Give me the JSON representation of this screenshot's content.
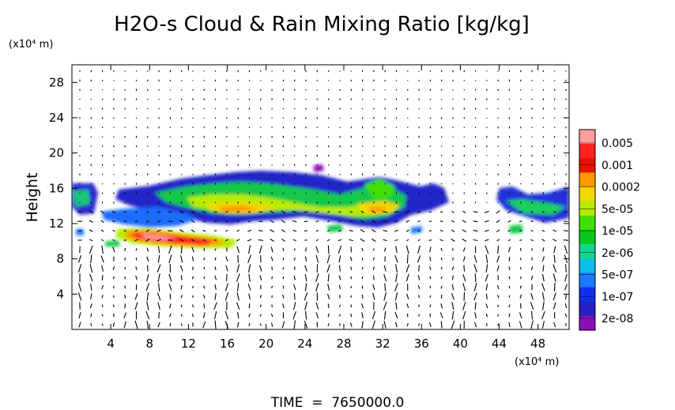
{
  "chart_data": {
    "type": "heatmap",
    "title": "H2O-s Cloud & Rain Mixing Ratio [kg/kg]",
    "xunit": "(x10⁴ m)",
    "yunit": "(x10⁴ m)",
    "ylabel": "Height",
    "footer": "TIME  =  7650000.0",
    "x_ticks": [
      "4",
      "8",
      "12",
      "16",
      "20",
      "24",
      "28",
      "32",
      "36",
      "40",
      "44",
      "48"
    ],
    "x_tick_values": [
      4,
      8,
      12,
      16,
      20,
      24,
      28,
      32,
      36,
      40,
      44,
      48
    ],
    "y_ticks": [
      "4",
      "8",
      "12",
      "16",
      "20",
      "24",
      "28"
    ],
    "y_tick_values": [
      4,
      8,
      12,
      16,
      20,
      24,
      28
    ],
    "xlim": [
      0,
      51.2
    ],
    "ylim": [
      0,
      30
    ],
    "colorbar_labels": [
      "0.005",
      "0.001",
      "0.0002",
      "5e-05",
      "1e-05",
      "2e-06",
      "5e-07",
      "1e-07",
      "2e-08"
    ],
    "colorbar_colors": [
      "#ff9c9c",
      "#ff2020",
      "#e81000",
      "#ff9800",
      "#f2d800",
      "#b6ec00",
      "#3fe000",
      "#06c81e",
      "#10d890",
      "#10bce8",
      "#1c78ff",
      "#1030f0",
      "#2820c4",
      "#8a10b8"
    ],
    "cloud_regions": [
      {
        "level": "2e-08",
        "x": [
          0,
          51.2
        ],
        "y": [
          13.0,
          16.5
        ]
      },
      {
        "level": "5e-05",
        "x": [
          15,
          24
        ],
        "y": [
          12.8,
          15.5
        ]
      },
      {
        "level": "5e-05",
        "x": [
          28,
          33
        ],
        "y": [
          12.0,
          16.2
        ]
      },
      {
        "level": "0.005",
        "x": [
          6,
          15
        ],
        "y": [
          9.6,
          10.8
        ]
      }
    ]
  }
}
